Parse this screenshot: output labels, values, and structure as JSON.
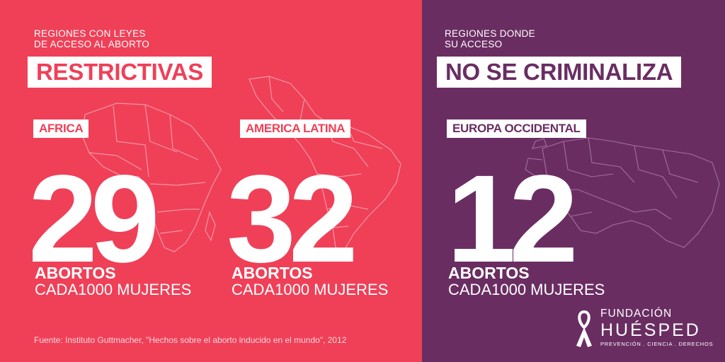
{
  "colors": {
    "pink": "#ef4058",
    "purple": "#6a2d62",
    "white": "#ffffff"
  },
  "left_panel": {
    "kicker_line1": "REGIONES CON LEYES",
    "kicker_line2": "DE ACCESO AL ABORTO",
    "headline": "RESTRICTIVAS",
    "regions": [
      {
        "name": "AFRICA",
        "value": "29",
        "metric_bold": "ABORTOS",
        "metric_light": "CADA1000 MUJERES"
      },
      {
        "name": "AMERICA LATINA",
        "value": "32",
        "metric_bold": "ABORTOS",
        "metric_light": "CADA1000 MUJERES"
      }
    ],
    "source": "Fuente: Instituto Guttmacher, \"Hechos sobre el aborto inducido en el mundo\", 2012"
  },
  "right_panel": {
    "kicker_line1": "REGIONES DONDE",
    "kicker_line2": "SU ACCESO",
    "headline": "NO SE CRIMINALIZA",
    "region": {
      "name": "EUROPA OCCIDENTAL",
      "value": "12",
      "metric_bold": "ABORTOS",
      "metric_light": "CADA1000 MUJERES"
    },
    "logo": {
      "line1": "FUNDACIÓN",
      "line2": "HUÉSPED",
      "tagline": "PREVENCIÓN . CIENCIA . DERECHOS",
      "icon": "ribbon-icon"
    }
  }
}
